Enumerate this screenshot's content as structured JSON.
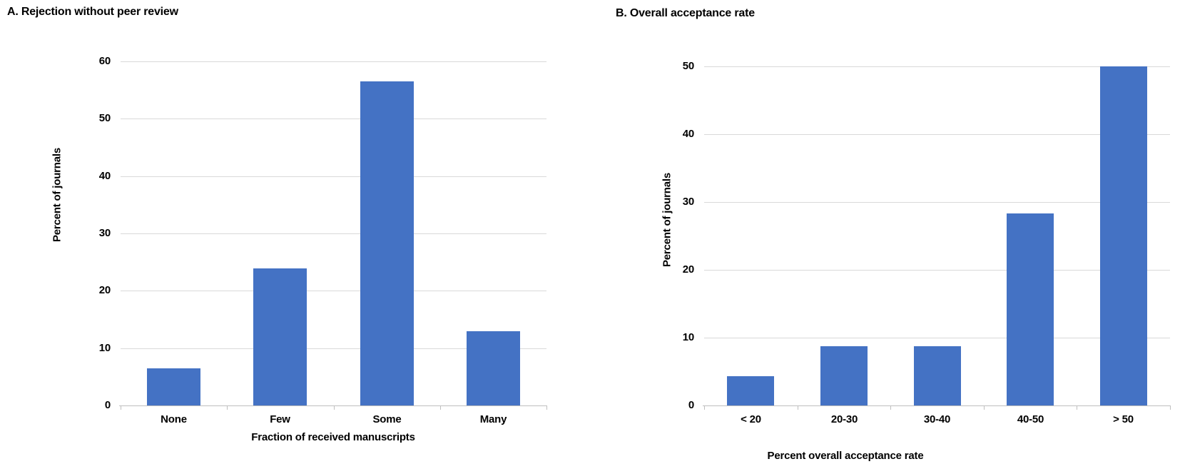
{
  "figure": {
    "bar_color": "#4472c4",
    "gridline_color": "#d9d9d9",
    "axis_color": "#bfbfbf",
    "text_color": "#000000"
  },
  "chart_data": [
    {
      "type": "bar",
      "title": "A. Rejection without peer review",
      "categories": [
        "None",
        "Few",
        "Some",
        "Many"
      ],
      "values": [
        6.5,
        23.9,
        56.5,
        13.0
      ],
      "xlabel": "Fraction of received manuscripts",
      "ylabel": "Percent of journals",
      "ylim": [
        0,
        60
      ],
      "yticks": [
        0,
        10,
        20,
        30,
        40,
        50,
        60
      ],
      "grid": true,
      "legend_position": "none"
    },
    {
      "type": "bar",
      "title": "B. Overall acceptance rate",
      "categories": [
        "< 20",
        "20-30",
        "30-40",
        "40-50",
        "> 50"
      ],
      "values": [
        4.3,
        8.7,
        8.7,
        28.3,
        50.0
      ],
      "xlabel": "Percent overall acceptance rate",
      "ylabel": "Percent of journals",
      "ylim": [
        0,
        50
      ],
      "yticks": [
        0,
        10,
        20,
        30,
        40,
        50
      ],
      "grid": true,
      "legend_position": "none"
    }
  ]
}
